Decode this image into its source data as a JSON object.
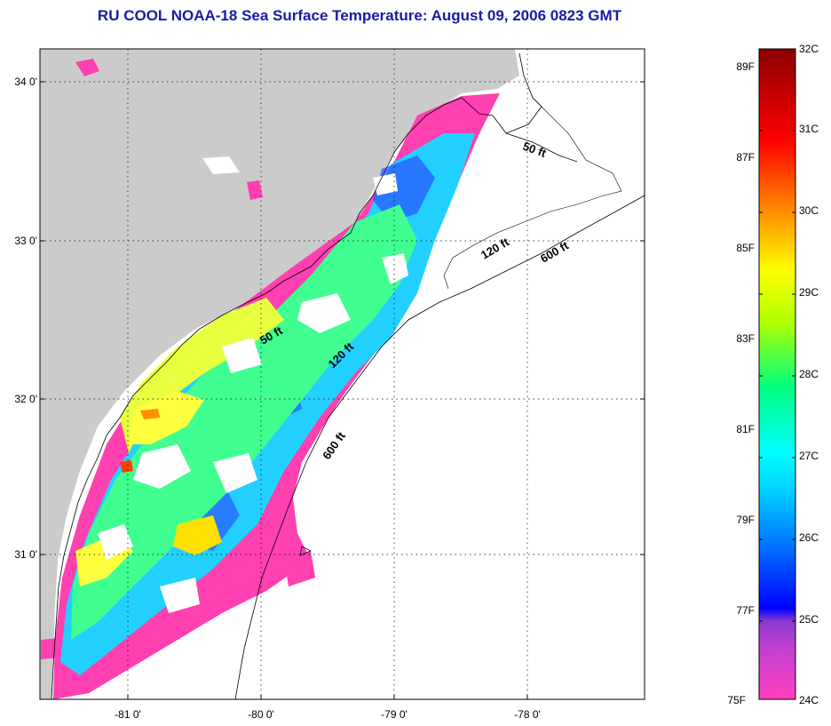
{
  "title": "RU COOL  NOAA-18  Sea Surface Temperature:  August 09, 2006 0823 GMT",
  "axes": {
    "lon_ticks": [
      "-81 0'",
      "-80 0'",
      "-79 0'",
      "-78 0'"
    ],
    "lat_ticks": [
      "34 0'",
      "33 0'",
      "32 0'",
      "31 0'"
    ]
  },
  "depth_labels": [
    "50 ft",
    "120 ft",
    "600 ft",
    "50 ft",
    "120 ft",
    "600 ft"
  ],
  "colorbar": {
    "fahrenheit": [
      "89F",
      "87F",
      "85F",
      "83F",
      "81F",
      "79F",
      "77F",
      "75F"
    ],
    "celsius": [
      "32C",
      "31C",
      "30C",
      "29C",
      "28C",
      "27C",
      "26C",
      "25C",
      "24C"
    ],
    "colors": [
      "#ff40c0",
      "#8a3ad0",
      "#0000ff",
      "#0090ff",
      "#00ffff",
      "#00ff80",
      "#b0ff00",
      "#ffff00",
      "#ff8000",
      "#ff0000",
      "#8b0000"
    ]
  },
  "colors": {
    "land": "#cbcbcb",
    "title": "#1a1aa8",
    "warm": "#ffff40",
    "pink": "#ff40b0"
  }
}
